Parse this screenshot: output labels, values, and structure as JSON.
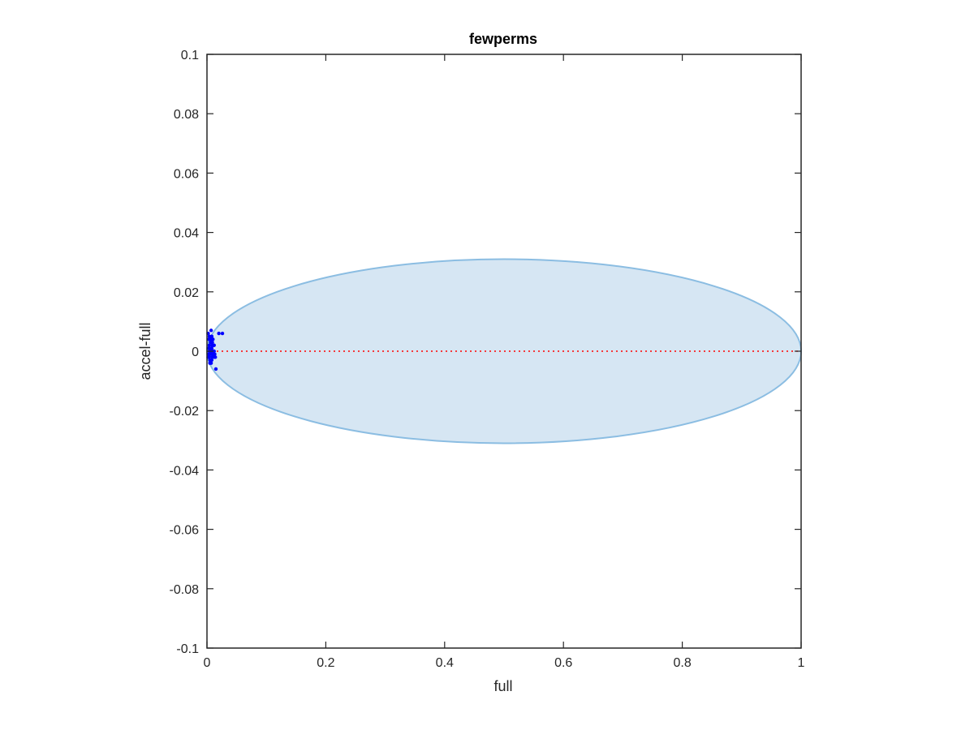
{
  "chart_data": {
    "type": "scatter",
    "title": "fewperms",
    "xlabel": "full",
    "ylabel": "accel-full",
    "xlim": [
      0,
      1
    ],
    "ylim": [
      -0.1,
      0.1
    ],
    "x_ticks": [
      "0",
      "0.2",
      "0.4",
      "0.6",
      "0.8",
      "1"
    ],
    "y_ticks": [
      "0.1",
      "0.08",
      "0.06",
      "0.04",
      "0.02",
      "0",
      "-0.02",
      "-0.04",
      "-0.06",
      "-0.08",
      "-0.1"
    ],
    "grid": false,
    "ellipse": {
      "center": [
        0.5,
        0.0
      ],
      "x_radius": 0.5,
      "y_radius": 0.031,
      "fill": "#d6e6f3",
      "stroke": "#8bbde2"
    },
    "reference_line": {
      "y": 0,
      "x_range": [
        0,
        1
      ],
      "color": "#ff0000",
      "style": "dotted"
    },
    "series": [
      {
        "color": "#0000ff",
        "points": [
          [
            0.002,
            0.006
          ],
          [
            0.003,
            0.004
          ],
          [
            0.004,
            0.002
          ],
          [
            0.005,
            0.001
          ],
          [
            0.006,
            0.003
          ],
          [
            0.007,
            0.0
          ],
          [
            0.003,
            -0.001
          ],
          [
            0.004,
            -0.002
          ],
          [
            0.006,
            -0.001
          ],
          [
            0.008,
            0.001
          ],
          [
            0.009,
            -0.002
          ],
          [
            0.01,
            0.0
          ],
          [
            0.011,
            -0.001
          ],
          [
            0.012,
            0.002
          ],
          [
            0.005,
            -0.003
          ],
          [
            0.007,
            -0.004
          ],
          [
            0.008,
            0.005
          ],
          [
            0.01,
            0.004
          ],
          [
            0.013,
            -0.001
          ],
          [
            0.006,
            0.004
          ],
          [
            0.004,
            0.005
          ],
          [
            0.002,
            -0.002
          ],
          [
            0.003,
            0.001
          ],
          [
            0.009,
            0.002
          ],
          [
            0.012,
            0.0
          ],
          [
            0.011,
            0.002
          ],
          [
            0.014,
            -0.002
          ],
          [
            0.015,
            -0.006
          ],
          [
            0.02,
            0.006
          ],
          [
            0.026,
            0.006
          ],
          [
            0.007,
            0.007
          ],
          [
            0.005,
            -0.004
          ],
          [
            0.008,
            -0.003
          ],
          [
            0.01,
            -0.001
          ],
          [
            0.006,
            0.0
          ],
          [
            0.004,
            0.0
          ],
          [
            0.012,
            -0.002
          ],
          [
            0.009,
            0.003
          ]
        ]
      }
    ]
  }
}
